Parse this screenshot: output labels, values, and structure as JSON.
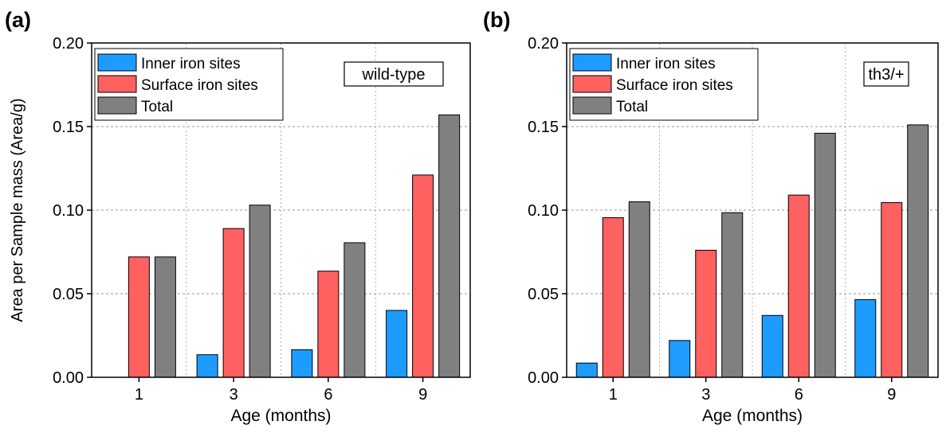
{
  "chart_data": [
    {
      "panel_label": "(a)",
      "type": "bar",
      "inset_label": "wild-type",
      "xlabel": "Age (months)",
      "ylabel": "Area per Sample mass (Area/g)",
      "categories": [
        "1",
        "3",
        "6",
        "9"
      ],
      "ylim": [
        0,
        0.2
      ],
      "yticks": [
        "0.00",
        "0.05",
        "0.10",
        "0.15",
        "0.20"
      ],
      "grid": true,
      "legend_position": "top-left",
      "series": [
        {
          "name": "Inner iron sites",
          "color": "#1e9bff",
          "values": [
            0,
            0.0135,
            0.0165,
            0.04
          ]
        },
        {
          "name": "Surface iron sites",
          "color": "#ff6060",
          "values": [
            0.072,
            0.089,
            0.0635,
            0.121
          ]
        },
        {
          "name": "Total",
          "color": "#808080",
          "values": [
            0.072,
            0.103,
            0.0805,
            0.157
          ]
        }
      ]
    },
    {
      "panel_label": "(b)",
      "type": "bar",
      "inset_label": "th3/+",
      "xlabel": "Age (months)",
      "ylabel": "",
      "categories": [
        "1",
        "3",
        "6",
        "9"
      ],
      "ylim": [
        0,
        0.2
      ],
      "yticks": [
        "0.00",
        "0.05",
        "0.10",
        "0.15",
        "0.20"
      ],
      "grid": true,
      "legend_position": "top-left",
      "series": [
        {
          "name": "Inner iron sites",
          "color": "#1e9bff",
          "values": [
            0.0085,
            0.022,
            0.037,
            0.0465
          ]
        },
        {
          "name": "Surface iron sites",
          "color": "#ff6060",
          "values": [
            0.0955,
            0.076,
            0.109,
            0.1045
          ]
        },
        {
          "name": "Total",
          "color": "#808080",
          "values": [
            0.105,
            0.0985,
            0.146,
            0.151
          ]
        }
      ]
    }
  ]
}
